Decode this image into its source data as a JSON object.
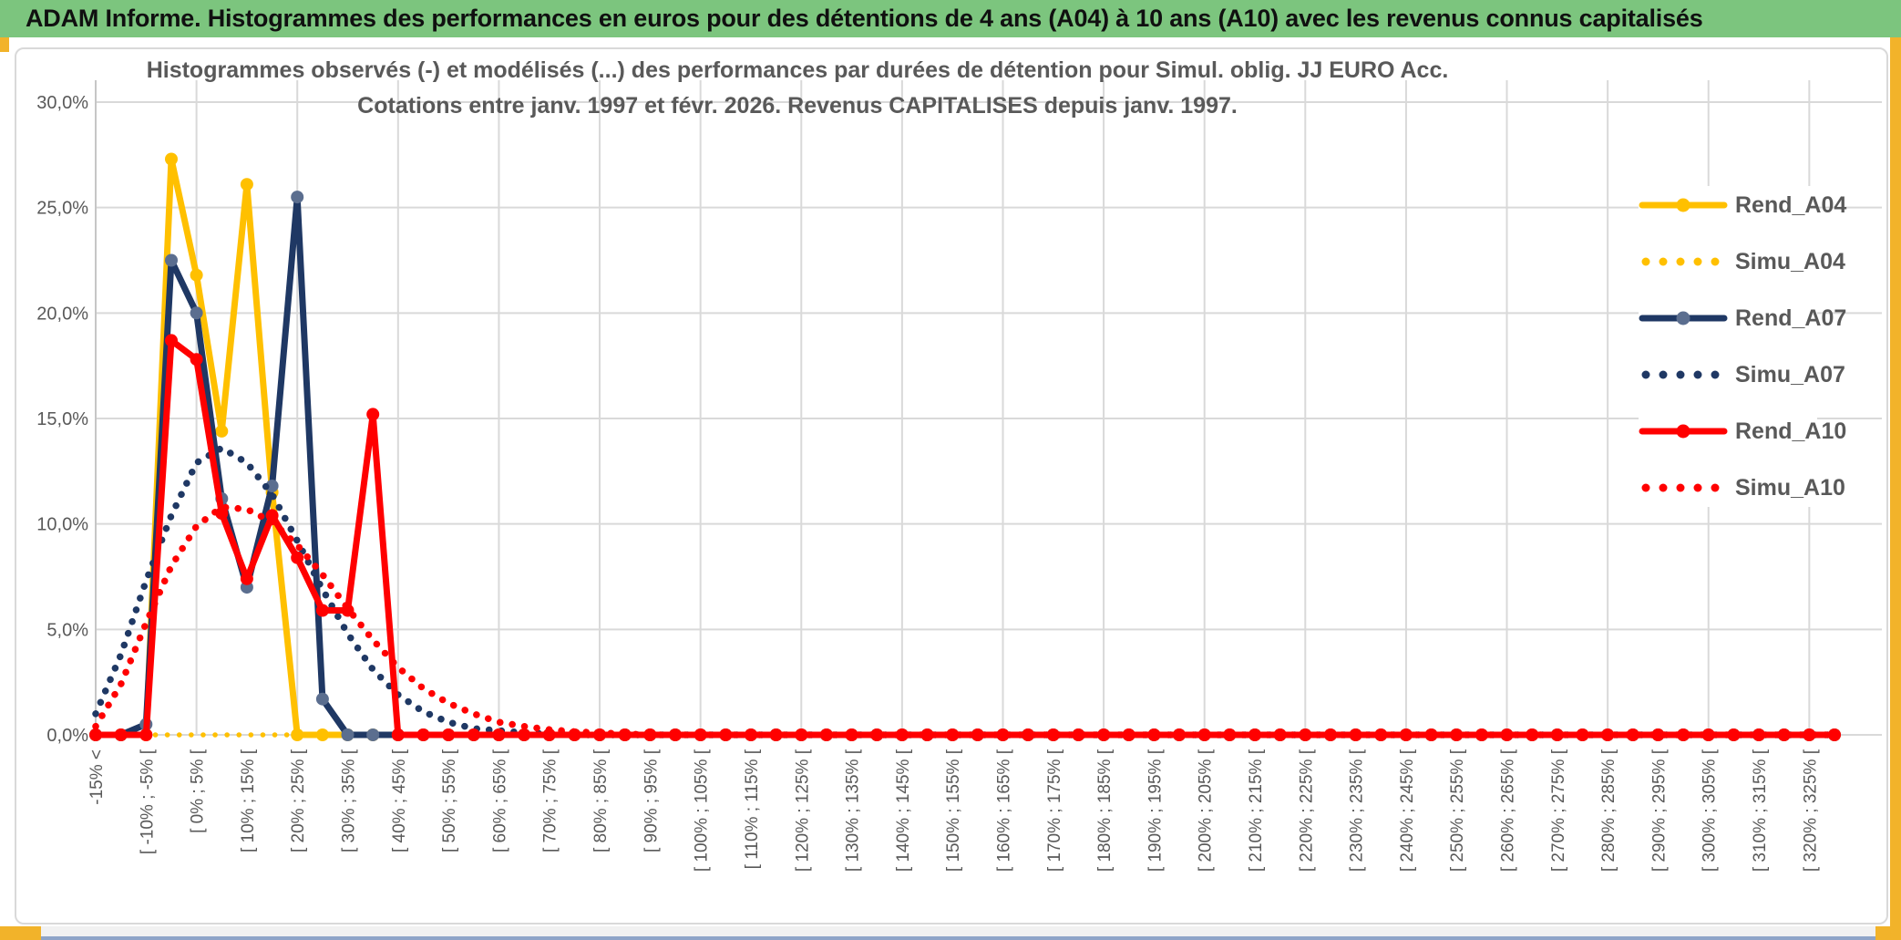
{
  "header": {
    "title": "ADAM Informe. Histogrammes des performances en euros pour des détentions de 4 ans (A04) à 10 ans (A10) avec les revenus connus capitalisés"
  },
  "chart_title": {
    "line1": "Histogrammes observés (-) et modélisés (...) des performances par durées de détention pour Simul. oblig. JJ EURO Acc.",
    "line2": "Cotations entre janv. 1997 et févr. 2026. Revenus CAPITALISES depuis janv. 1997."
  },
  "chart_data": {
    "type": "line",
    "title": "Histogrammes observés (-) et modélisés (...) des performances par durées de détention pour Simul. oblig. JJ EURO Acc. Cotations entre janv. 1997 et févr. 2026. Revenus CAPITALISES depuis janv. 1997.",
    "ylim": [
      0,
      30
    ],
    "y_tick_labels": [
      "0,0%",
      "5,0%",
      "10,0%",
      "15,0%",
      "20,0%",
      "25,0%",
      "30,0%"
    ],
    "x_tick_labels": [
      "-15% <",
      "[ -10% ; -5% [",
      "[ 0% ; 5% [",
      "[ 10% ; 15% [",
      "[ 20% ; 25% [",
      "[ 30% ; 35% [",
      "[ 40% ; 45% [",
      "[ 50% ; 55% [",
      "[ 60% ; 65% [",
      "[ 70% ; 75% [",
      "[ 80% ; 85% [",
      "[ 90% ; 95% [",
      "[ 100% ; 105% [",
      "[ 110% ; 115% [",
      "[ 120% ; 125% [",
      "[ 130% ; 135% [",
      "[ 140% ; 145% [",
      "[ 150% ; 155% [",
      "[ 160% ; 165% [",
      "[ 170% ; 175% [",
      "[ 180% ; 185% [",
      "[ 190% ; 195% [",
      "[ 200% ; 205% [",
      "[ 210% ; 215% [",
      "[ 220% ; 225% [",
      "[ 230% ; 235% [",
      "[ 240% ; 245% [",
      "[ 250% ; 255% [",
      "[ 260% ; 265% [",
      "[ 270% ; 275% [",
      "[ 280% ; 285% [",
      "[ 290% ; 295% [",
      "[ 300% ; 305% [",
      "[ 310% ; 315% [",
      "[ 320% ; 325% ["
    ],
    "x_ticks_apply_to_every_second_point": true,
    "num_points": 70,
    "bin_width_pct": 5,
    "grid": {
      "horizontal_step_pct": 5,
      "vertical_every_points": 4,
      "color": "#D9D9D9"
    },
    "legend_position": "right",
    "series": [
      {
        "name": "Rend_A04",
        "style": "solid",
        "color": "#FFC000",
        "marker_color": "#FFC000",
        "values": [
          0,
          0,
          0,
          27.3,
          21.8,
          14.4,
          26.1,
          11.5,
          0,
          0,
          0,
          0,
          0,
          0,
          0,
          0,
          0,
          0,
          0,
          0,
          0,
          0,
          0,
          0,
          0,
          0,
          0,
          0,
          0,
          0,
          0,
          0,
          0,
          0,
          0,
          0,
          0,
          0,
          0,
          0,
          0,
          0,
          0,
          0,
          0,
          0,
          0,
          0,
          0,
          0,
          0,
          0,
          0,
          0,
          0,
          0,
          0,
          0,
          0,
          0,
          0,
          0,
          0,
          0,
          0,
          0,
          0,
          0,
          0,
          0
        ]
      },
      {
        "name": "Simu_A04",
        "style": "dotted",
        "color": "#FFC000",
        "values": [
          0,
          0,
          0,
          0,
          0,
          0,
          0,
          0,
          0,
          0,
          0,
          0,
          0,
          0,
          0,
          0,
          0,
          0,
          0,
          0,
          0,
          0,
          0,
          0,
          0,
          0,
          0,
          0,
          0,
          0,
          0,
          0,
          0,
          0,
          0,
          0,
          0,
          0,
          0,
          0,
          0,
          0,
          0,
          0,
          0,
          0,
          0,
          0,
          0,
          0,
          0,
          0,
          0,
          0,
          0,
          0,
          0,
          0,
          0,
          0,
          0,
          0,
          0,
          0,
          0,
          0,
          0,
          0,
          0,
          0
        ]
      },
      {
        "name": "Rend_A07",
        "style": "solid",
        "color": "#1F3864",
        "marker_color": "#5B6E8F",
        "values": [
          0,
          0,
          0.5,
          22.5,
          20,
          11.2,
          7,
          11.8,
          25.5,
          1.7,
          0,
          0,
          0,
          0,
          0,
          0,
          0,
          0,
          0,
          0,
          0,
          0,
          0,
          0,
          0,
          0,
          0,
          0,
          0,
          0,
          0,
          0,
          0,
          0,
          0,
          0,
          0,
          0,
          0,
          0,
          0,
          0,
          0,
          0,
          0,
          0,
          0,
          0,
          0,
          0,
          0,
          0,
          0,
          0,
          0,
          0,
          0,
          0,
          0,
          0,
          0,
          0,
          0,
          0,
          0,
          0,
          0,
          0,
          0,
          0
        ]
      },
      {
        "name": "Simu_A07",
        "style": "dotted",
        "color": "#1F3864",
        "values": [
          1,
          3.8,
          7.3,
          10.4,
          12.9,
          13.6,
          12.9,
          11.4,
          9.2,
          6.9,
          4.8,
          3.1,
          1.9,
          1.1,
          0.6,
          0.3,
          0.2,
          0.1,
          0.05,
          0,
          0,
          0,
          0,
          0,
          0,
          0,
          0,
          0,
          0,
          0,
          0,
          0,
          0,
          0,
          0,
          0,
          0,
          0,
          0,
          0,
          0,
          0,
          0,
          0,
          0,
          0,
          0,
          0,
          0,
          0,
          0,
          0,
          0,
          0,
          0,
          0,
          0,
          0,
          0,
          0,
          0,
          0,
          0,
          0,
          0,
          0,
          0,
          0,
          0,
          0
        ]
      },
      {
        "name": "Rend_A10",
        "style": "solid",
        "color": "#FF0000",
        "marker_color": "#FF0000",
        "values": [
          0,
          0,
          0,
          18.7,
          17.8,
          10.5,
          7.4,
          10.4,
          8.4,
          5.9,
          5.9,
          15.2,
          0,
          0,
          0,
          0,
          0,
          0,
          0,
          0,
          0,
          0,
          0,
          0,
          0,
          0,
          0,
          0,
          0,
          0,
          0,
          0,
          0,
          0,
          0,
          0,
          0,
          0,
          0,
          0,
          0,
          0,
          0,
          0,
          0,
          0,
          0,
          0,
          0,
          0,
          0,
          0,
          0,
          0,
          0,
          0,
          0,
          0,
          0,
          0,
          0,
          0,
          0,
          0,
          0,
          0,
          0,
          0,
          0,
          0
        ]
      },
      {
        "name": "Simu_A10",
        "style": "dotted",
        "color": "#FF0000",
        "values": [
          0.4,
          2.4,
          5.3,
          8,
          9.9,
          10.8,
          10.7,
          10.1,
          9,
          7.6,
          6,
          4.5,
          3.2,
          2.2,
          1.5,
          1,
          0.6,
          0.4,
          0.25,
          0.15,
          0.1,
          0.05,
          0,
          0,
          0,
          0,
          0,
          0,
          0,
          0,
          0,
          0,
          0,
          0,
          0,
          0,
          0,
          0,
          0,
          0,
          0,
          0,
          0,
          0,
          0,
          0,
          0,
          0,
          0,
          0,
          0,
          0,
          0,
          0,
          0,
          0,
          0,
          0,
          0,
          0,
          0,
          0,
          0,
          0,
          0,
          0,
          0,
          0,
          0,
          0
        ]
      }
    ]
  },
  "colors": {
    "header_bg": "#7CC57E",
    "title_text": "#595959",
    "axis_text": "#595959",
    "gridline": "#D9D9D9",
    "accent_gold": "#F2B32A",
    "accent_blue": "#8EA4C8"
  }
}
